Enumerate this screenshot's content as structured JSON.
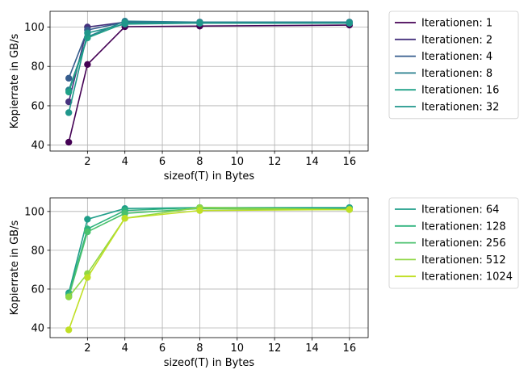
{
  "chart_data": [
    {
      "type": "line",
      "xlabel": "sizeof(T) in Bytes",
      "ylabel": "Kopierrate in GB/s",
      "xlim": [
        0,
        17
      ],
      "ylim": [
        37,
        108
      ],
      "xticks": [
        2,
        4,
        6,
        8,
        10,
        12,
        14,
        16
      ],
      "yticks": [
        40,
        60,
        80,
        100
      ],
      "grid": true,
      "legend_position": "outside-right",
      "x": [
        1,
        2,
        4,
        8,
        16
      ],
      "series": [
        {
          "name": "Iterationen: 1",
          "color": "#440154",
          "values": [
            41.5,
            81,
            100.2,
            100.5,
            101
          ]
        },
        {
          "name": "Iterationen: 2",
          "color": "#46327e",
          "values": [
            62,
            100,
            102.5,
            102,
            102
          ]
        },
        {
          "name": "Iterationen: 4",
          "color": "#365c8d",
          "values": [
            74,
            98.5,
            102.5,
            102.5,
            102.5
          ]
        },
        {
          "name": "Iterationen: 8",
          "color": "#277f8e",
          "values": [
            68,
            95,
            103,
            102.5,
            102.5
          ]
        },
        {
          "name": "Iterationen: 16",
          "color": "#1fa187",
          "values": [
            67,
            94.5,
            102,
            102,
            102
          ]
        },
        {
          "name": "Iterationen: 32",
          "color": "#1f968b",
          "values": [
            56.5,
            97,
            101.5,
            102,
            102
          ]
        }
      ]
    },
    {
      "type": "line",
      "xlabel": "sizeof(T) in Bytes",
      "ylabel": "Kopierrate in GB/s",
      "xlim": [
        0,
        17
      ],
      "ylim": [
        35,
        107
      ],
      "xticks": [
        2,
        4,
        6,
        8,
        10,
        12,
        14,
        16
      ],
      "yticks": [
        40,
        60,
        80,
        100
      ],
      "grid": true,
      "legend_position": "outside-right",
      "x": [
        1,
        2,
        4,
        8,
        16
      ],
      "series": [
        {
          "name": "Iterationen: 64",
          "color": "#1f9e89",
          "values": [
            58,
            96,
            101.5,
            102,
            102
          ]
        },
        {
          "name": "Iterationen: 128",
          "color": "#2db27d",
          "values": [
            57,
            91,
            100.5,
            102,
            101.5
          ]
        },
        {
          "name": "Iterationen: 256",
          "color": "#4ac16d",
          "values": [
            56,
            89.5,
            99,
            101.5,
            101
          ]
        },
        {
          "name": "Iterationen: 512",
          "color": "#8fd744",
          "values": [
            56,
            68,
            96.5,
            102,
            101
          ]
        },
        {
          "name": "Iterationen: 1024",
          "color": "#c0df25",
          "values": [
            39,
            66,
            96.5,
            100.5,
            101
          ]
        }
      ]
    }
  ]
}
